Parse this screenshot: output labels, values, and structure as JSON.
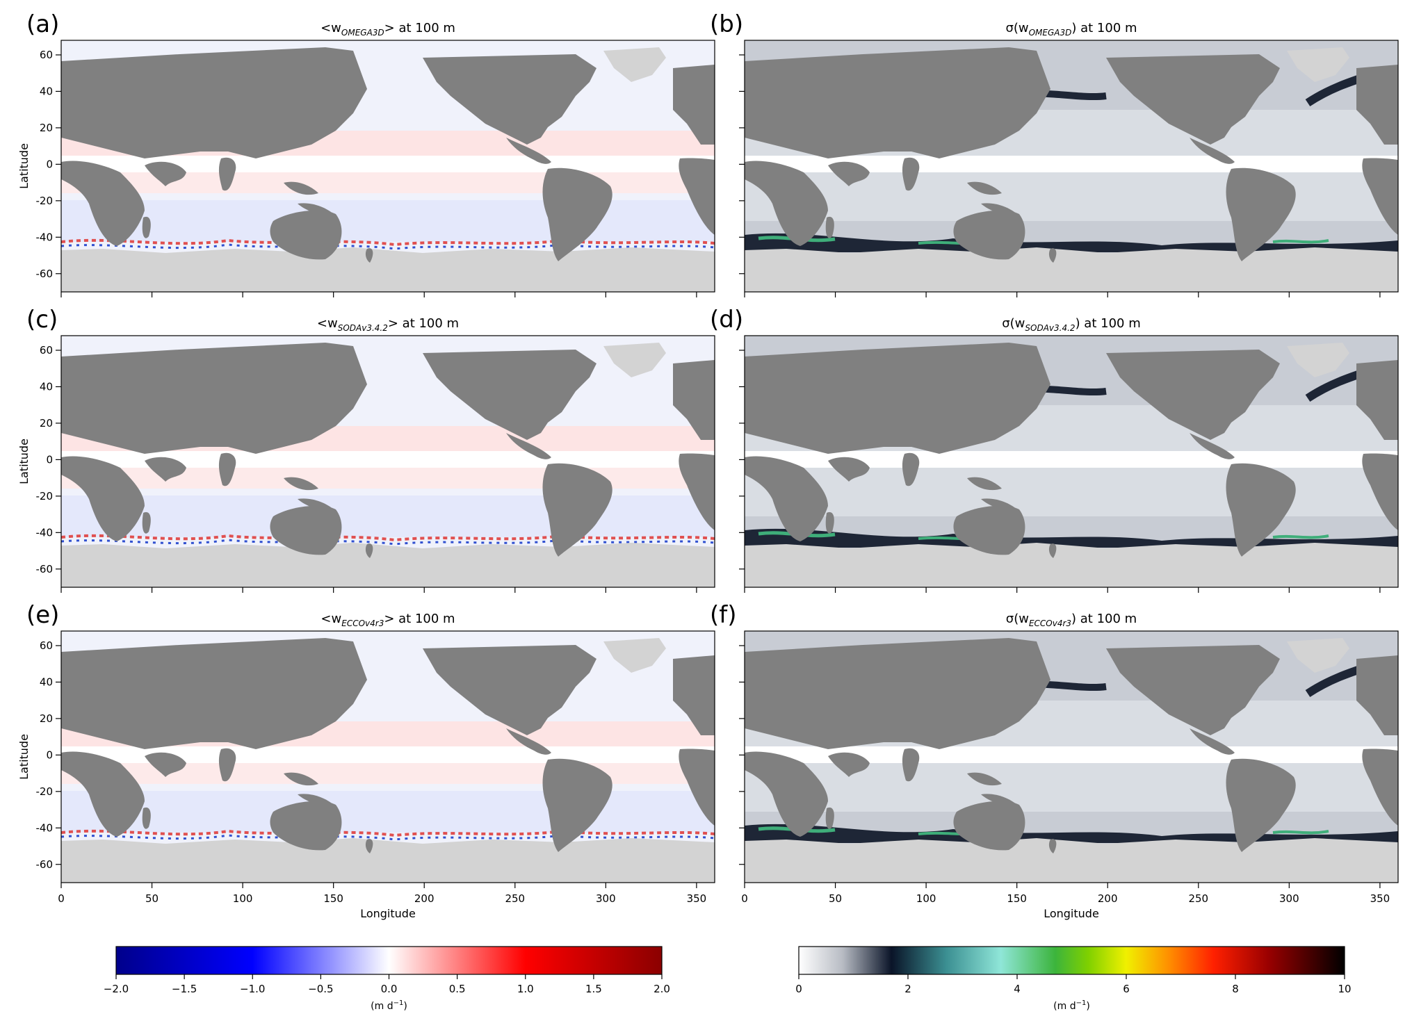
{
  "figure": {
    "x_axis_label": "Longitude",
    "y_axis_label": "Latitude",
    "colorbar_unit": "(m d",
    "colorbar_unit_sup": "−1",
    "colorbar_unit_end": ")"
  },
  "chart_data": [
    {
      "type": "heatmap",
      "panel_letter": "(a)",
      "title_pre": "<w",
      "title_sub": "OMEGA3D",
      "title_post": "> at 100 m",
      "colorscale": "diverging",
      "xlim": [
        0,
        360
      ],
      "ylim": [
        -70,
        68
      ],
      "xticks": [
        0,
        50,
        100,
        150,
        200,
        250,
        300,
        350
      ],
      "yticks": [
        -60,
        -40,
        -20,
        0,
        20,
        40,
        60
      ]
    },
    {
      "type": "heatmap",
      "panel_letter": "(b)",
      "title_pre": "σ(w",
      "title_sub": "OMEGA3D",
      "title_post": ") at 100 m",
      "colorscale": "sequential",
      "xlim": [
        0,
        360
      ],
      "ylim": [
        -70,
        68
      ],
      "xticks": [
        0,
        50,
        100,
        150,
        200,
        250,
        300,
        350
      ],
      "yticks": [
        -60,
        -40,
        -20,
        0,
        20,
        40,
        60
      ]
    },
    {
      "type": "heatmap",
      "panel_letter": "(c)",
      "title_pre": "<w",
      "title_sub": "SODAv3.4.2",
      "title_post": "> at 100 m",
      "colorscale": "diverging",
      "xlim": [
        0,
        360
      ],
      "ylim": [
        -70,
        68
      ],
      "xticks": [
        0,
        50,
        100,
        150,
        200,
        250,
        300,
        350
      ],
      "yticks": [
        -60,
        -40,
        -20,
        0,
        20,
        40,
        60
      ]
    },
    {
      "type": "heatmap",
      "panel_letter": "(d)",
      "title_pre": "σ(w",
      "title_sub": "SODAv3.4.2",
      "title_post": ") at 100 m",
      "colorscale": "sequential",
      "xlim": [
        0,
        360
      ],
      "ylim": [
        -70,
        68
      ],
      "xticks": [
        0,
        50,
        100,
        150,
        200,
        250,
        300,
        350
      ],
      "yticks": [
        -60,
        -40,
        -20,
        0,
        20,
        40,
        60
      ]
    },
    {
      "type": "heatmap",
      "panel_letter": "(e)",
      "title_pre": "<w",
      "title_sub": "ECCOv4r3",
      "title_post": "> at 100 m",
      "colorscale": "diverging",
      "xlim": [
        0,
        360
      ],
      "ylim": [
        -70,
        68
      ],
      "xticks": [
        0,
        50,
        100,
        150,
        200,
        250,
        300,
        350
      ],
      "yticks": [
        -60,
        -40,
        -20,
        0,
        20,
        40,
        60
      ]
    },
    {
      "type": "heatmap",
      "panel_letter": "(f)",
      "title_pre": "σ(w",
      "title_sub": "ECCOv4r3",
      "title_post": ") at 100 m",
      "colorscale": "sequential",
      "xlim": [
        0,
        360
      ],
      "ylim": [
        -70,
        68
      ],
      "xticks": [
        0,
        50,
        100,
        150,
        200,
        250,
        300,
        350
      ],
      "yticks": [
        -60,
        -40,
        -20,
        0,
        20,
        40,
        60
      ]
    }
  ],
  "colorbars": [
    {
      "range": [
        -2.0,
        2.0
      ],
      "ticks": [
        -2.0,
        -1.5,
        -1.0,
        -0.5,
        0.0,
        0.5,
        1.0,
        1.5,
        2.0
      ],
      "tick_labels": [
        "−2.0",
        "−1.5",
        "−1.0",
        "−0.5",
        "0.0",
        "0.5",
        "1.0",
        "1.5",
        "2.0"
      ],
      "colors": [
        "#00008b",
        "#0000ff",
        "#ffffff",
        "#ff0000",
        "#8b0000"
      ]
    },
    {
      "range": [
        0,
        10
      ],
      "ticks": [
        0,
        2,
        4,
        6,
        8,
        10
      ],
      "tick_labels": [
        "0",
        "2",
        "4",
        "6",
        "8",
        "10"
      ],
      "colors": [
        "#ffffff",
        "#b8bcc4",
        "#0a1428",
        "#3b8f92",
        "#8fe6d8",
        "#3cb43c",
        "#7fd000",
        "#f0f000",
        "#ff8c00",
        "#ff2000",
        "#9a0000",
        "#000000"
      ]
    }
  ]
}
